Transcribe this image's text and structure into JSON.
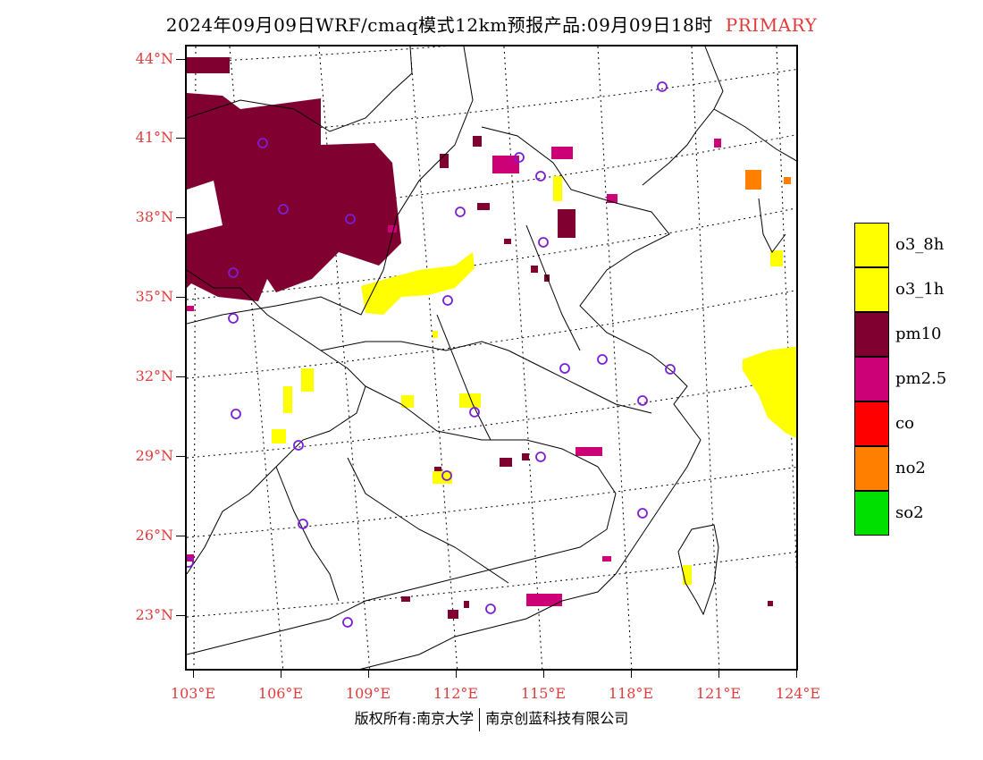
{
  "title": {
    "main": "2024年09月09日WRF/cmaq模式12km预报产品:09月09日18时",
    "tag": "PRIMARY"
  },
  "map": {
    "lat_labels": [
      "44°N",
      "41°N",
      "38°N",
      "35°N",
      "32°N",
      "29°N",
      "26°N",
      "23°N"
    ],
    "lon_labels": [
      "103°E",
      "106°E",
      "109°E",
      "112°E",
      "115°E",
      "118°E",
      "121°E",
      "124°E"
    ],
    "colors": {
      "o3_8h": "#ffff00",
      "o3_1h": "#ffff00",
      "pm10": "#800030",
      "pm2_5": "#cc0077",
      "co": "#ff0000",
      "no2": "#ff8000",
      "so2": "#00e000",
      "station": "#7b1fd6"
    }
  },
  "legend": [
    {
      "label": "o3_8h",
      "color": "#ffff00"
    },
    {
      "label": "o3_1h",
      "color": "#ffff00"
    },
    {
      "label": "pm10",
      "color": "#800030"
    },
    {
      "label": "pm2.5",
      "color": "#cc0077"
    },
    {
      "label": "co",
      "color": "#ff0000"
    },
    {
      "label": "no2",
      "color": "#ff8000"
    },
    {
      "label": "so2",
      "color": "#00e000"
    }
  ],
  "footer": {
    "left": "版权所有:南京大学",
    "right": "南京创蓝科技有限公司"
  }
}
